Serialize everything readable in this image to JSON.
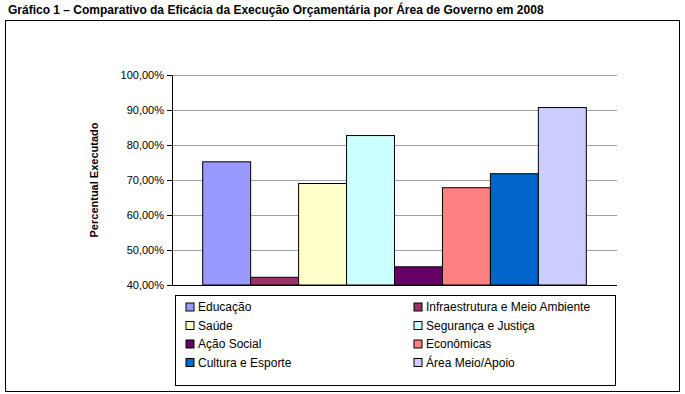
{
  "chart_data": {
    "type": "bar",
    "title": "Gráfico 1 – Comparativo da Eficácia da Execução Orçamentária por Área de Governo em 2008",
    "y_label": "Percentual Executado",
    "categories": [
      null
    ],
    "series": [
      {
        "name": "Educação",
        "color": "#9999ff",
        "values": [
          75.2
        ]
      },
      {
        "name": "Infraestrutura e Meio Ambiente",
        "color": "#993366",
        "values": [
          42.2
        ]
      },
      {
        "name": "Saúde",
        "color": "#ffffcc",
        "values": [
          69.0
        ]
      },
      {
        "name": "Segurança e Justiça",
        "color": "#ccffff",
        "values": [
          82.7
        ]
      },
      {
        "name": "Ação Social",
        "color": "#660066",
        "values": [
          45.2
        ]
      },
      {
        "name": "Econômicas",
        "color": "#ff8080",
        "values": [
          67.8
        ]
      },
      {
        "name": "Cultura e Esporte",
        "color": "#0066cc",
        "values": [
          71.8
        ]
      },
      {
        "name": "Área Meio/Apoio",
        "color": "#ccccff",
        "values": [
          90.7
        ]
      }
    ],
    "ylim": [
      40,
      100
    ],
    "yticks": [
      {
        "value": 40,
        "label": "40,00%"
      },
      {
        "value": 50,
        "label": "50,00%"
      },
      {
        "value": 60,
        "label": "60,00%"
      },
      {
        "value": 70,
        "label": "70,00%"
      },
      {
        "value": 80,
        "label": "80,00%"
      },
      {
        "value": 90,
        "label": "90,00%"
      },
      {
        "value": 100,
        "label": "100,00%"
      }
    ],
    "grid": true,
    "legend": "bottom"
  }
}
